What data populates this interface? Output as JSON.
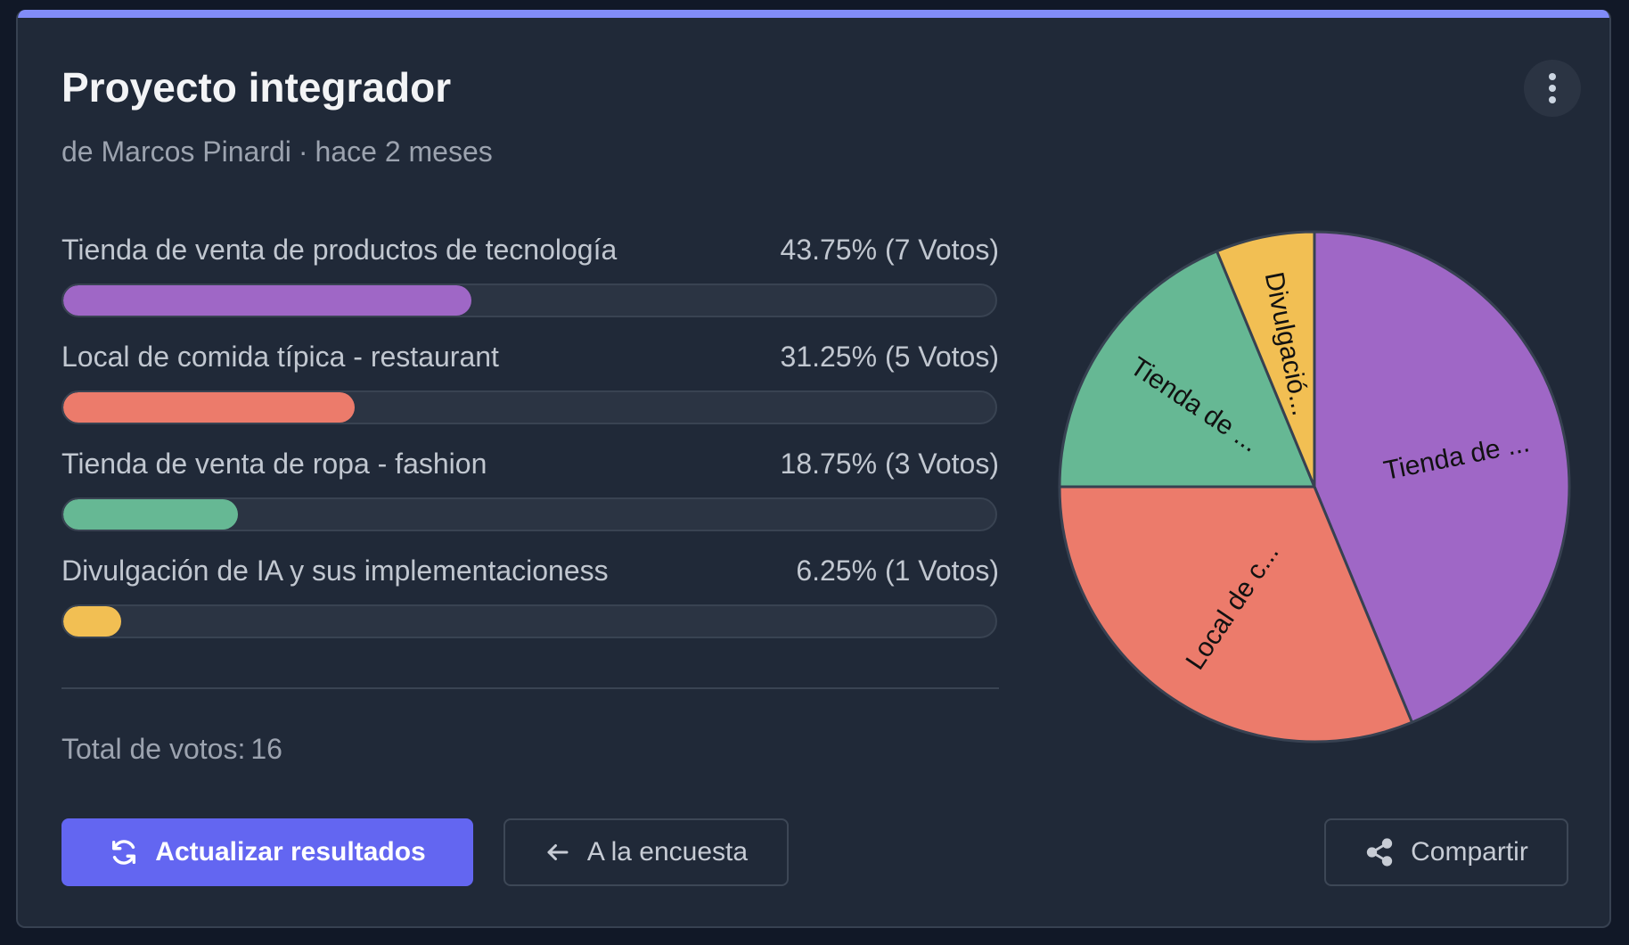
{
  "poll": {
    "title": "Proyecto integrador",
    "author": "de Marcos Pinardi",
    "separator": "·",
    "time_ago": "hace 2 meses",
    "options": [
      {
        "label": "Tienda de venta de productos de tecnología",
        "result": "43.75% (7 Votos)",
        "percent": 43.75,
        "votes": 7,
        "color": "#9f67c6"
      },
      {
        "label": "Local de comida típica - restaurant",
        "result": "31.25% (5 Votos)",
        "percent": 31.25,
        "votes": 5,
        "color": "#ec7b6b"
      },
      {
        "label": "Tienda de venta de ropa - fashion",
        "result": "18.75% (3 Votos)",
        "percent": 18.75,
        "votes": 3,
        "color": "#66b894"
      },
      {
        "label": "Divulgación de IA y sus implementacioness",
        "result": "6.25% (1 Votos)",
        "percent": 6.25,
        "votes": 1,
        "color": "#f2bf53"
      }
    ],
    "total_label": "Total de votos:",
    "total_value": "16"
  },
  "buttons": {
    "refresh_label": "Actualizar resultados",
    "back_label": "A la encuesta",
    "share_label": "Compartir"
  },
  "icons": {
    "refresh": "refresh-icon",
    "back": "arrow-left-icon",
    "share": "share-icon",
    "menu": "kebab-menu-icon"
  },
  "colors": {
    "accent": "#818cf8",
    "primary_button": "#6366f1",
    "card_background": "#202938"
  },
  "chart_data": {
    "type": "pie",
    "categories": [
      "Tienda de venta de productos de tecnología",
      "Local de comida típica - restaurant",
      "Tienda de venta de ropa - fashion",
      "Divulgación de IA y sus implementacioness"
    ],
    "values": [
      7,
      5,
      3,
      1
    ],
    "slice_labels": [
      "Tienda de ...",
      "Local de c...",
      "Tienda de ...",
      "Divulgació..."
    ],
    "colors": [
      "#9f67c6",
      "#ec7b6b",
      "#66b894",
      "#f2bf53"
    ]
  }
}
